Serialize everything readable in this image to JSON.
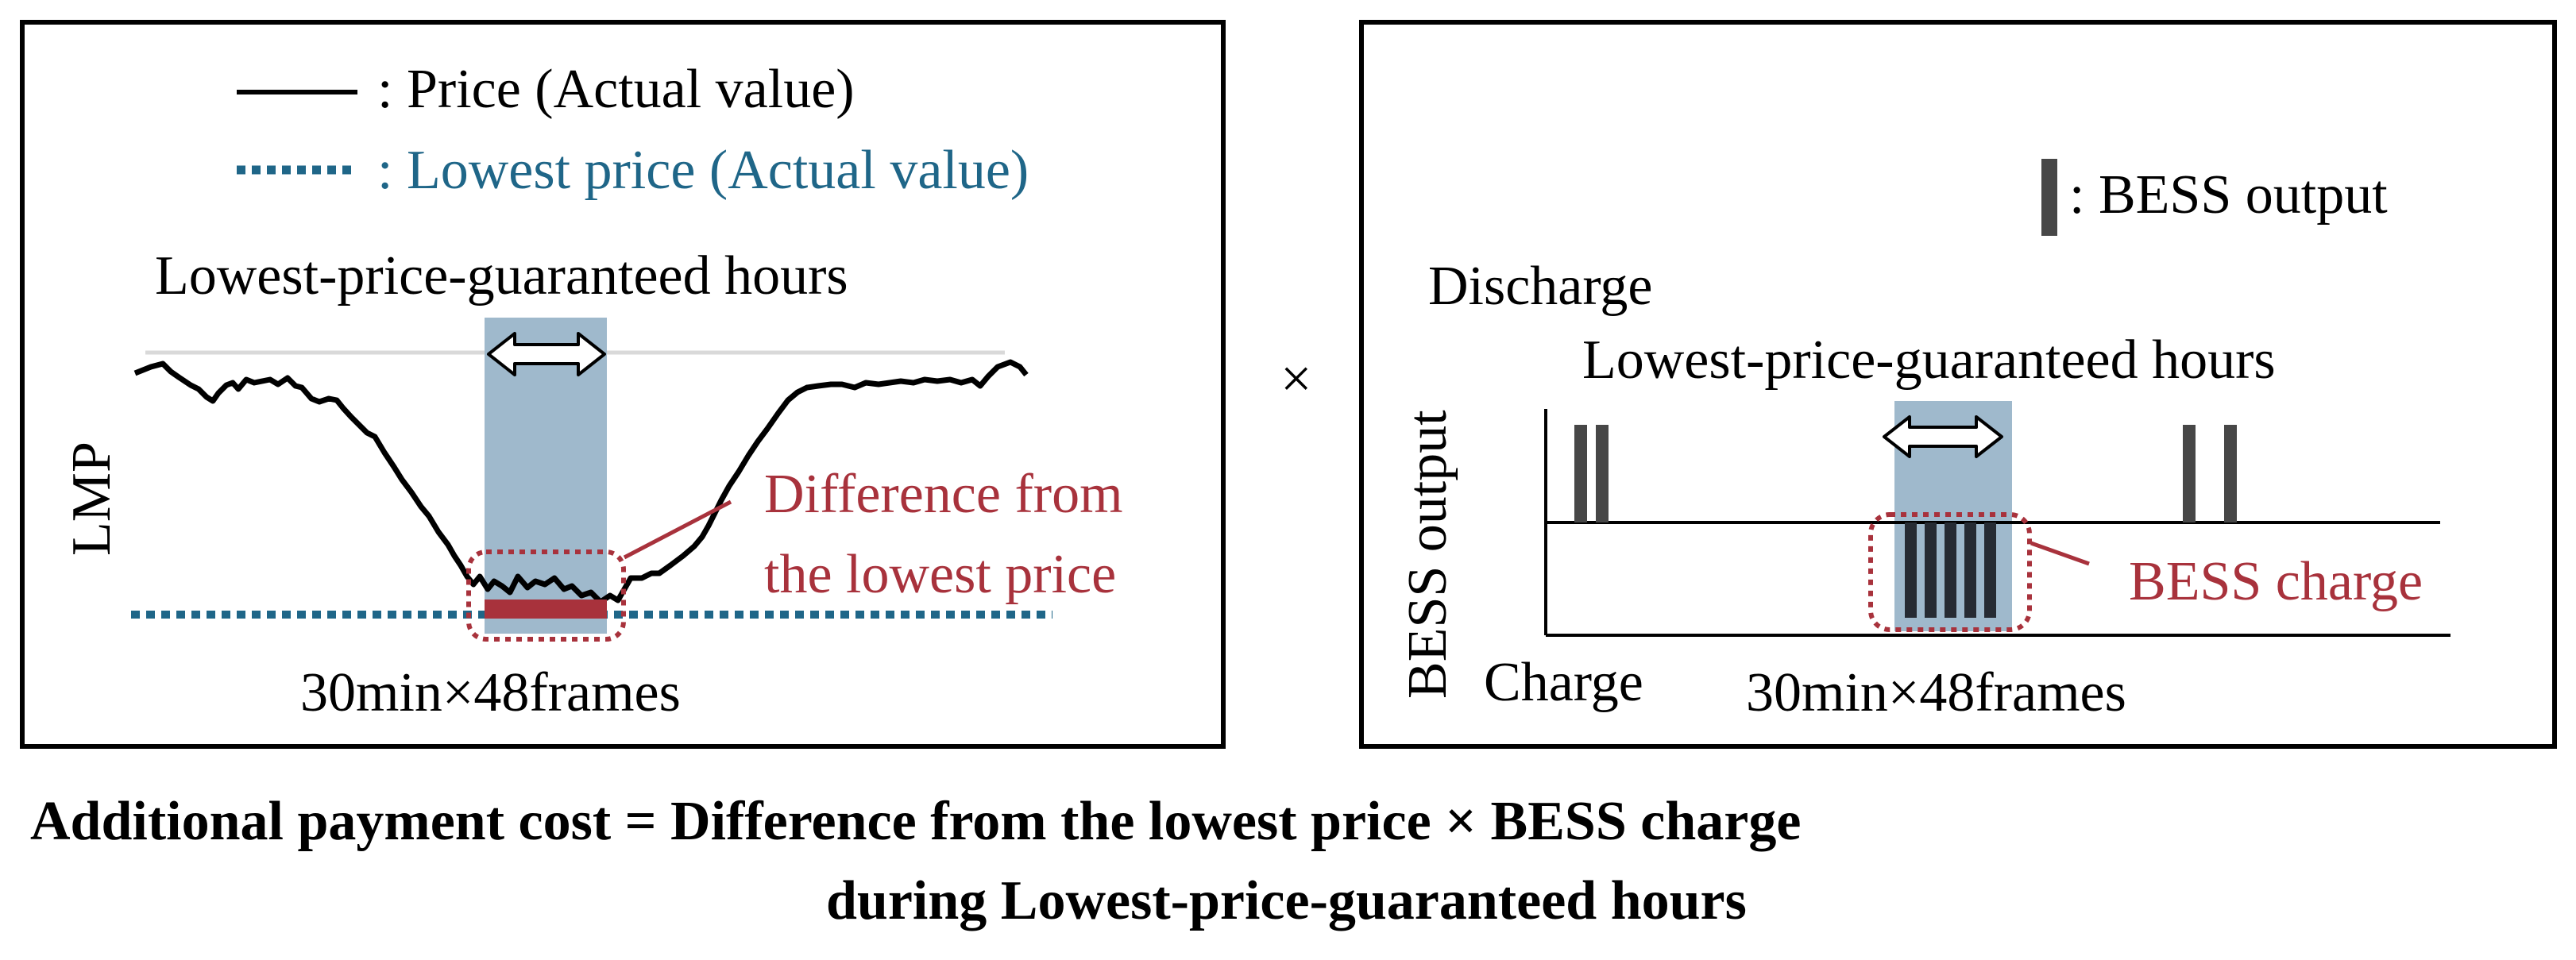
{
  "left_panel": {
    "legend_price": ": Price (Actual value)",
    "legend_lowest": ": Lowest price (Actual value)",
    "guaranteed_label": "Lowest-price-guaranteed hours",
    "ylabel": "LMP",
    "difference_label_line1": "Difference from",
    "difference_label_line2": "the lowest price",
    "xlabel": "30min×48frames"
  },
  "operator": "×",
  "right_panel": {
    "legend_bess": ": BESS output",
    "discharge_label": "Discharge",
    "guaranteed_label": "Lowest-price-guaranteed hours",
    "ylabel": "BESS output",
    "charge_label": "Charge",
    "bess_charge_label": "BESS charge",
    "xlabel": "30min×48frames"
  },
  "caption": {
    "line1": "Additional payment cost = Difference from the lowest price × BESS charge",
    "line2": "during Lowest-price-guaranteed hours"
  },
  "colors": {
    "price_line": "#000000",
    "lowest_line": "#1f6688",
    "highlight": "#9fb9cc",
    "accent_red": "#a8323c",
    "bess_bar": "#474747"
  }
}
